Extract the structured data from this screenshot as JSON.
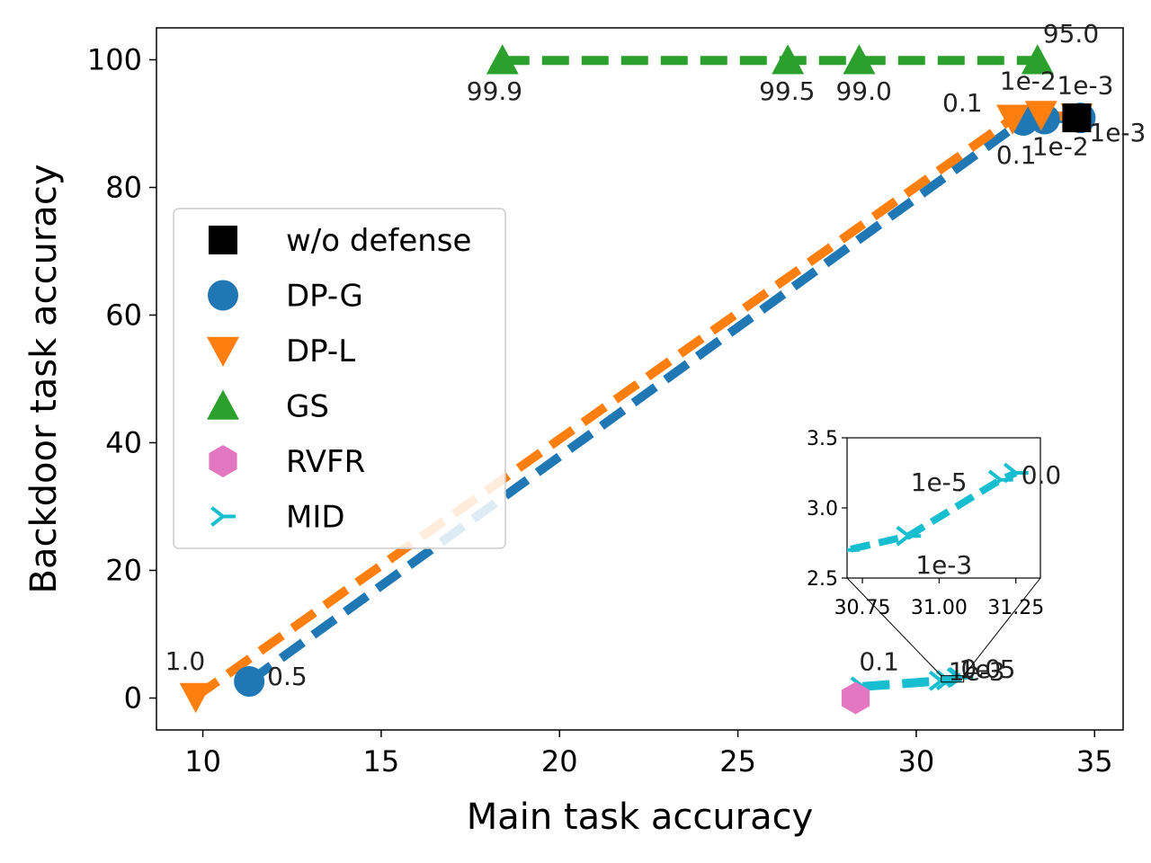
{
  "chart_data": {
    "type": "scatter",
    "xlabel": "Main task accuracy",
    "ylabel": "Backdoor task accuracy",
    "xlim": [
      8.7,
      35.8
    ],
    "ylim": [
      -5,
      105
    ],
    "xticks": [
      10,
      15,
      20,
      25,
      30,
      35
    ],
    "yticks": [
      0,
      20,
      40,
      60,
      80,
      100
    ],
    "legend_position": "center-left",
    "series": [
      {
        "name": "w/o defense",
        "marker": "square",
        "color": "#000000",
        "line": false,
        "points": [
          {
            "x": 34.5,
            "y": 90.9,
            "label": ""
          }
        ]
      },
      {
        "name": "DP-G",
        "marker": "circle",
        "color": "#1f77b4",
        "line": true,
        "points": [
          {
            "x": 11.3,
            "y": 2.6,
            "label": "0.5"
          },
          {
            "x": 33.0,
            "y": 90.5,
            "label": "0.1"
          },
          {
            "x": 33.6,
            "y": 90.7,
            "label": "1e-2"
          },
          {
            "x": 34.6,
            "y": 90.9,
            "label": "1e-3"
          }
        ]
      },
      {
        "name": "DP-L",
        "marker": "triangle-down",
        "color": "#ff7f0e",
        "line": true,
        "points": [
          {
            "x": 9.8,
            "y": 0.2,
            "label": "1.0"
          },
          {
            "x": 32.7,
            "y": 90.8,
            "label": "0.1"
          },
          {
            "x": 33.5,
            "y": 91.4,
            "label": "1e-2"
          },
          {
            "x": 34.5,
            "y": 91.0,
            "label": "1e-3"
          }
        ]
      },
      {
        "name": "GS",
        "marker": "triangle-up",
        "color": "#2ca02c",
        "line": true,
        "points": [
          {
            "x": 18.4,
            "y": 99.9,
            "label": "99.9"
          },
          {
            "x": 26.4,
            "y": 99.9,
            "label": "99.5"
          },
          {
            "x": 28.4,
            "y": 99.9,
            "label": "99.0"
          },
          {
            "x": 33.4,
            "y": 99.9,
            "label": "95.0"
          }
        ]
      },
      {
        "name": "RVFR",
        "marker": "hexagon",
        "color": "#e377c2",
        "line": false,
        "points": [
          {
            "x": 28.3,
            "y": 0.0,
            "label": ""
          }
        ]
      },
      {
        "name": "MID",
        "marker": "tri",
        "color": "#17becf",
        "line": true,
        "points": [
          {
            "x": 28.5,
            "y": 1.8,
            "label": "0.1"
          },
          {
            "x": 30.7,
            "y": 2.7,
            "label": ""
          },
          {
            "x": 30.9,
            "y": 2.8,
            "label": "1e-3"
          },
          {
            "x": 31.2,
            "y": 3.2,
            "label": "1e-5"
          },
          {
            "x": 31.25,
            "y": 3.25,
            "label": "0.0"
          }
        ]
      }
    ],
    "inset": {
      "xlim": [
        30.7,
        31.33
      ],
      "ylim": [
        2.5,
        3.5
      ],
      "xticks": [
        "30.75",
        "31.00",
        "31.25"
      ],
      "yticks": [
        "2.5",
        "3.0",
        "3.5"
      ],
      "zoom_box": {
        "x": [
          30.7,
          31.33
        ],
        "y": [
          2.5,
          3.5
        ]
      }
    }
  }
}
